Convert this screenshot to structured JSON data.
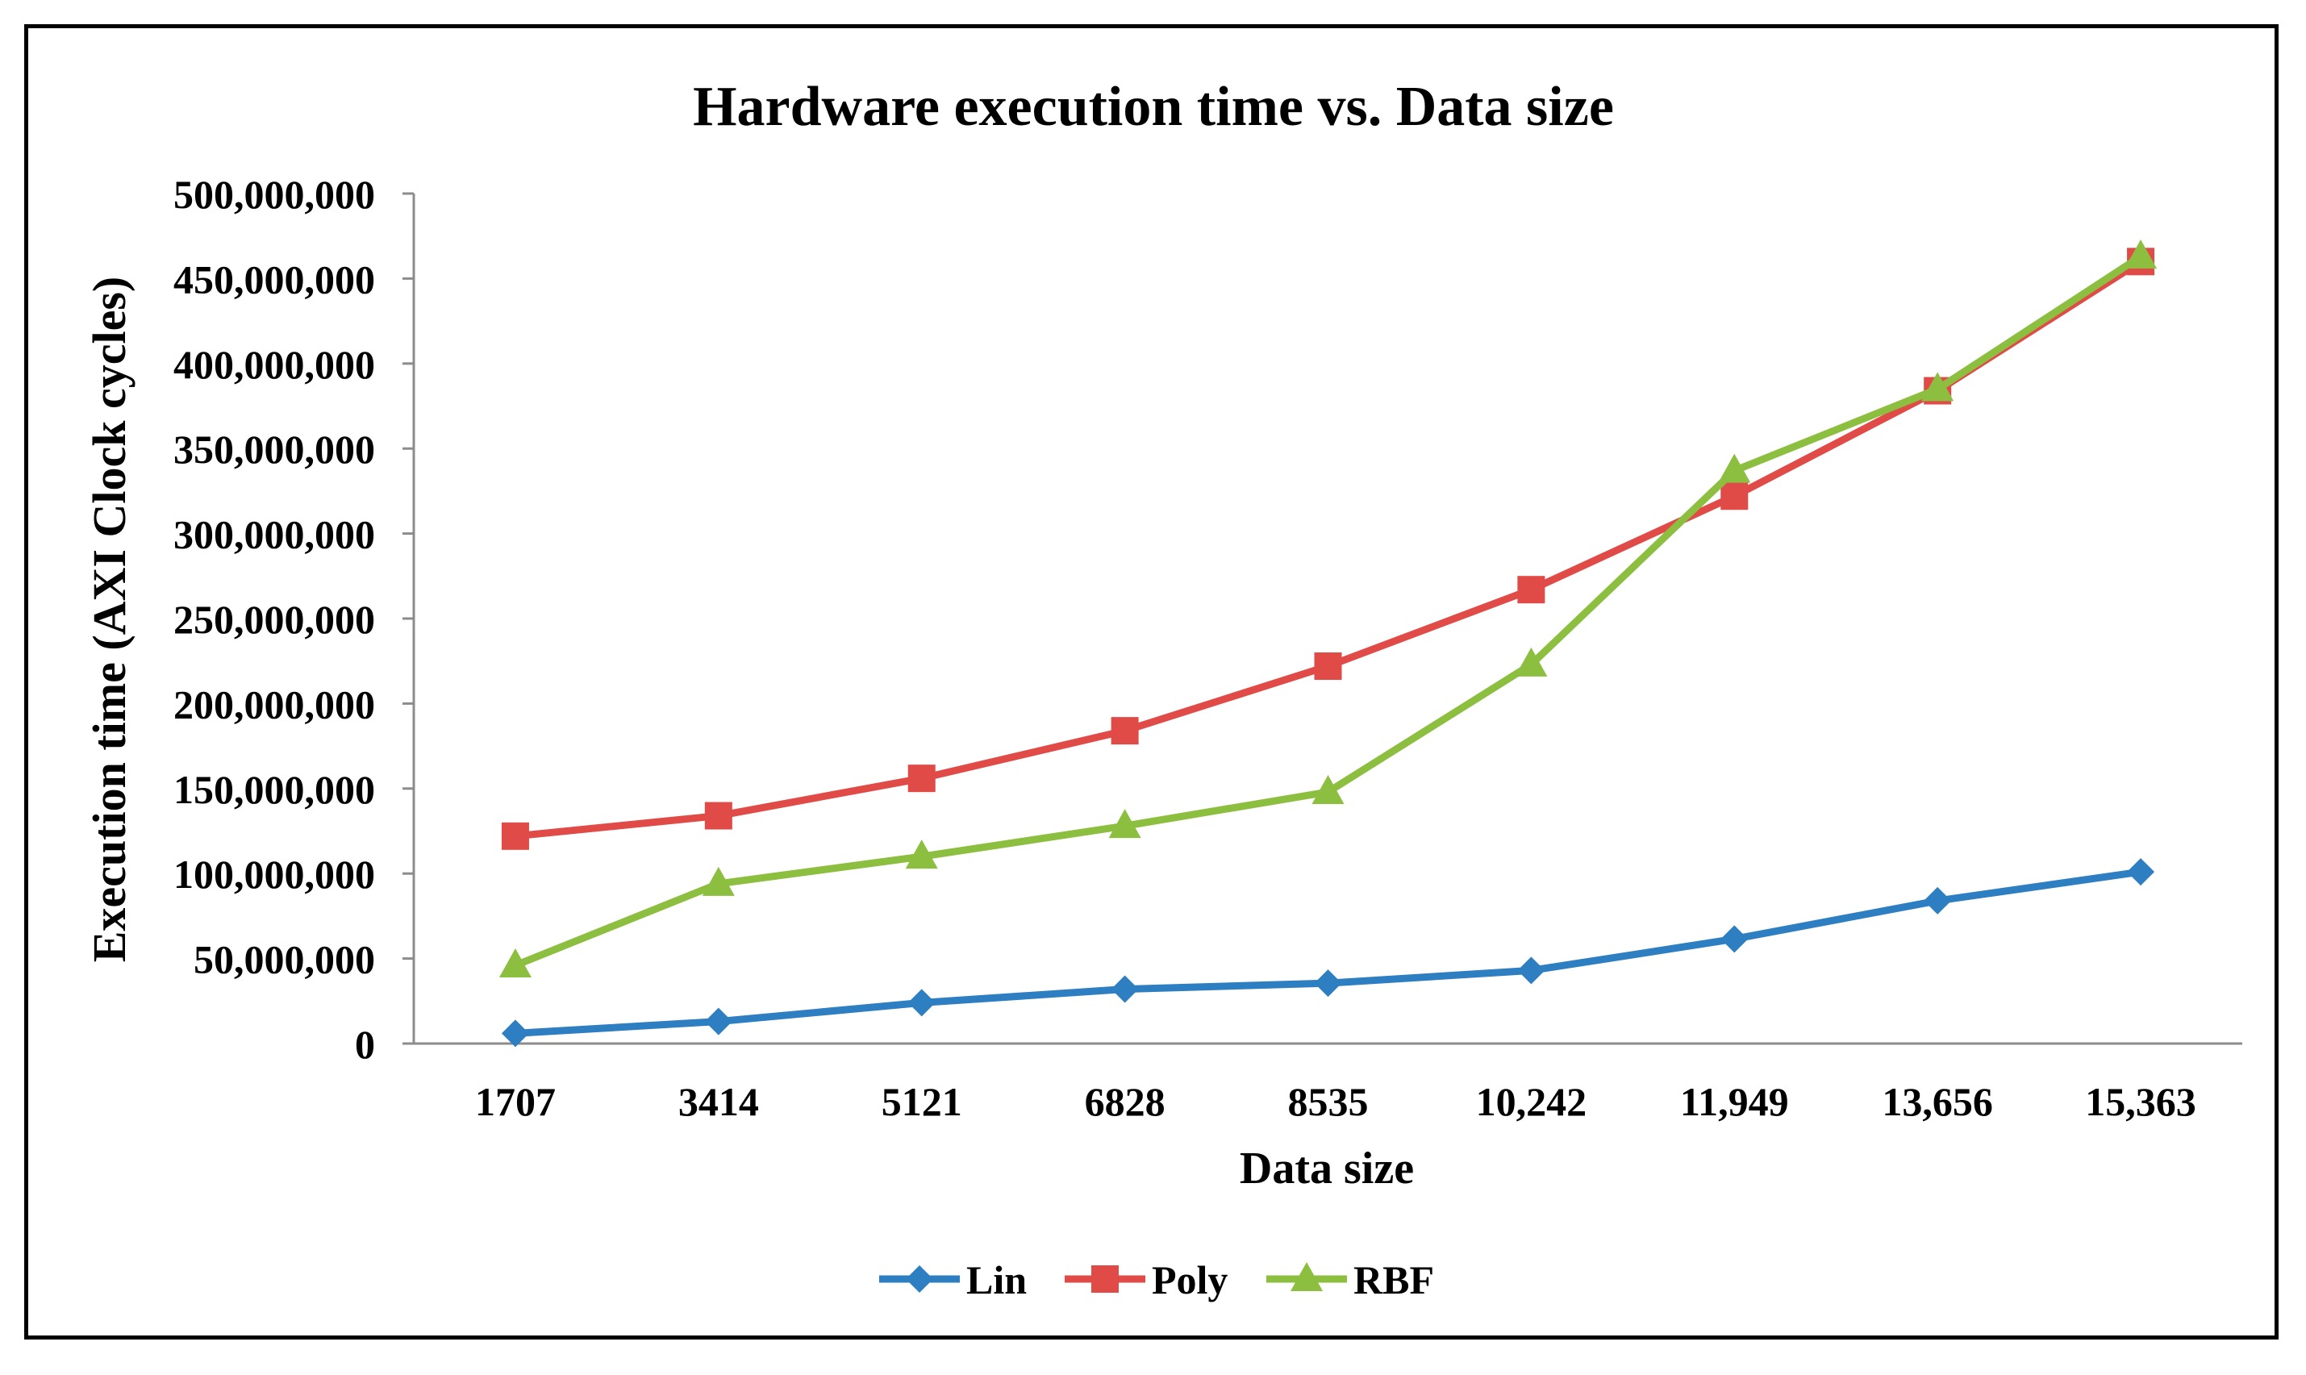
{
  "chart_data": {
    "type": "line",
    "title": "Hardware execution time vs. Data size",
    "xlabel": "Data size",
    "ylabel": "Execution time (AXI Clock cycles)",
    "categories": [
      "1707",
      "3414",
      "5121",
      "6828",
      "8535",
      "10,242",
      "11,949",
      "13,656",
      "15,363"
    ],
    "ylim": [
      0,
      500000000
    ],
    "yticks": [
      0,
      50000000,
      100000000,
      150000000,
      200000000,
      250000000,
      300000000,
      350000000,
      400000000,
      450000000,
      500000000
    ],
    "ytick_labels": [
      "0",
      "50,000,000",
      "100,000,000",
      "150,000,000",
      "200,000,000",
      "250,000,000",
      "300,000,000",
      "350,000,000",
      "400,000,000",
      "450,000,000",
      "500,000,000"
    ],
    "grid": false,
    "legend_position": "bottom",
    "series": [
      {
        "name": "Lin",
        "color": "#2E7EC2",
        "marker": "diamond",
        "values": [
          6000000,
          13000000,
          24000000,
          32000000,
          35500000,
          43000000,
          61500000,
          84000000,
          101000000
        ]
      },
      {
        "name": "Poly",
        "color": "#E04B48",
        "marker": "square",
        "values": [
          122000000,
          134000000,
          156000000,
          184000000,
          222000000,
          267000000,
          322000000,
          384000000,
          460000000
        ]
      },
      {
        "name": "RBF",
        "color": "#8CBF3F",
        "marker": "triangle",
        "values": [
          46000000,
          94000000,
          110000000,
          128000000,
          148000000,
          223000000,
          337000000,
          385000000,
          463000000
        ]
      }
    ]
  }
}
